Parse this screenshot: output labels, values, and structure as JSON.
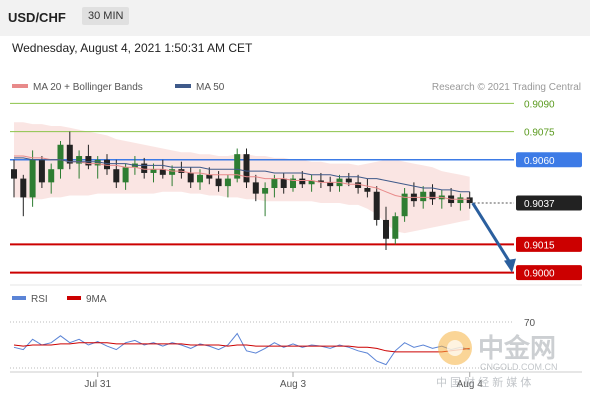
{
  "header": {
    "symbol": "USD/CHF",
    "timeframe": "30 MIN",
    "timestamp": "Wednesday, August 4, 2021 1:50:31 AM CET"
  },
  "credit": "Research © 2021 Trading Central",
  "watermark": {
    "brand": "中金网",
    "url": "CNGOLD.COM.CN",
    "slogan": "中 国 财 经 新 媒 体"
  },
  "colors": {
    "up": "#2e7d32",
    "down": "#222222",
    "ma20": "#e88a8a",
    "band": "#f7d4d1",
    "ma50": "#3f5a8a",
    "resistance": "#8bc34a",
    "pivot": "#3d7be6",
    "support": "#cc0000",
    "current": "#222222",
    "rsi": "#5b84d6",
    "rsi_ma": "#cc0000"
  },
  "chart_data": [
    {
      "type": "candlestick",
      "legend": [
        {
          "name": "MA 20 + Bollinger Bands",
          "color": "#e88a8a"
        },
        {
          "name": "MA 50",
          "color": "#3f5a8a"
        }
      ],
      "ylim": [
        0.8995,
        0.9095
      ],
      "x_ticks": [
        "Jul 31",
        "Aug 3",
        "Aug 4"
      ],
      "levels": [
        {
          "value": 0.909,
          "label": "0.9090",
          "kind": "resistance"
        },
        {
          "value": 0.9075,
          "label": "0.9075",
          "kind": "resistance"
        },
        {
          "value": 0.906,
          "label": "0.9060",
          "kind": "pivot"
        },
        {
          "value": 0.9037,
          "label": "0.9037",
          "kind": "current"
        },
        {
          "value": 0.9015,
          "label": "0.9015",
          "kind": "support"
        },
        {
          "value": 0.9,
          "label": "0.9000",
          "kind": "support"
        }
      ],
      "ohlc": [
        [
          0.9055,
          0.906,
          0.904,
          0.905
        ],
        [
          0.905,
          0.9052,
          0.903,
          0.904
        ],
        [
          0.904,
          0.9065,
          0.9035,
          0.906
        ],
        [
          0.906,
          0.9062,
          0.9045,
          0.9048
        ],
        [
          0.9048,
          0.9058,
          0.9042,
          0.9055
        ],
        [
          0.9055,
          0.907,
          0.905,
          0.9068
        ],
        [
          0.9068,
          0.9075,
          0.9055,
          0.9058
        ],
        [
          0.9058,
          0.9065,
          0.905,
          0.9062
        ],
        [
          0.9062,
          0.9068,
          0.9055,
          0.9057
        ],
        [
          0.9057,
          0.9062,
          0.905,
          0.906
        ],
        [
          0.906,
          0.9063,
          0.9052,
          0.9055
        ],
        [
          0.9055,
          0.906,
          0.9045,
          0.9048
        ],
        [
          0.9048,
          0.9058,
          0.9044,
          0.9056
        ],
        [
          0.9056,
          0.9062,
          0.9052,
          0.9058
        ],
        [
          0.9058,
          0.9061,
          0.905,
          0.9053
        ],
        [
          0.9053,
          0.9058,
          0.9048,
          0.9055
        ],
        [
          0.9055,
          0.906,
          0.905,
          0.9052
        ],
        [
          0.9052,
          0.9057,
          0.9046,
          0.9055
        ],
        [
          0.9055,
          0.9059,
          0.905,
          0.9053
        ],
        [
          0.9053,
          0.9056,
          0.9045,
          0.9048
        ],
        [
          0.9048,
          0.9055,
          0.9044,
          0.9052
        ],
        [
          0.9052,
          0.9056,
          0.9047,
          0.905
        ],
        [
          0.905,
          0.9054,
          0.9043,
          0.9046
        ],
        [
          0.9046,
          0.9052,
          0.904,
          0.905
        ],
        [
          0.905,
          0.9066,
          0.9048,
          0.9063
        ],
        [
          0.9063,
          0.9066,
          0.9045,
          0.9048
        ],
        [
          0.9048,
          0.9052,
          0.9038,
          0.9042
        ],
        [
          0.9042,
          0.9048,
          0.903,
          0.9045
        ],
        [
          0.9045,
          0.9052,
          0.904,
          0.905
        ],
        [
          0.905,
          0.9053,
          0.9042,
          0.9045
        ],
        [
          0.9045,
          0.9052,
          0.9043,
          0.905
        ],
        [
          0.905,
          0.9054,
          0.9045,
          0.9047
        ],
        [
          0.9047,
          0.9052,
          0.9043,
          0.9049
        ],
        [
          0.9049,
          0.9053,
          0.9045,
          0.9048
        ],
        [
          0.9048,
          0.9051,
          0.9043,
          0.9046
        ],
        [
          0.9046,
          0.9052,
          0.9043,
          0.905
        ],
        [
          0.905,
          0.9053,
          0.9046,
          0.9048
        ],
        [
          0.9048,
          0.9052,
          0.9042,
          0.9045
        ],
        [
          0.9045,
          0.905,
          0.904,
          0.9043
        ],
        [
          0.9043,
          0.9046,
          0.9025,
          0.9028
        ],
        [
          0.9028,
          0.9035,
          0.9012,
          0.9018
        ],
        [
          0.9018,
          0.9032,
          0.9015,
          0.903
        ],
        [
          0.903,
          0.9045,
          0.9027,
          0.9042
        ],
        [
          0.9042,
          0.9048,
          0.9035,
          0.9038
        ],
        [
          0.9038,
          0.9046,
          0.9034,
          0.9043
        ],
        [
          0.9043,
          0.9047,
          0.9036,
          0.9039
        ],
        [
          0.9039,
          0.9044,
          0.9034,
          0.9041
        ],
        [
          0.9041,
          0.9045,
          0.9035,
          0.9037
        ],
        [
          0.9037,
          0.9042,
          0.9033,
          0.904
        ],
        [
          0.904,
          0.9043,
          0.9034,
          0.9037
        ]
      ],
      "ma20": [
        0.9062,
        0.9062,
        0.9061,
        0.9061,
        0.906,
        0.906,
        0.9059,
        0.9059,
        0.9058,
        0.9058,
        0.9057,
        0.9057,
        0.9056,
        0.9056,
        0.9055,
        0.9055,
        0.9055,
        0.9054,
        0.9054,
        0.9053,
        0.9053,
        0.9052,
        0.9052,
        0.9052,
        0.9052,
        0.9051,
        0.9051,
        0.905,
        0.905,
        0.905,
        0.9049,
        0.9049,
        0.9049,
        0.9048,
        0.9048,
        0.9048,
        0.9047,
        0.9047,
        0.9046,
        0.9045,
        0.9043,
        0.9041,
        0.904,
        0.904,
        0.904,
        0.904,
        0.904,
        0.9039,
        0.9039,
        0.9039
      ],
      "band_upper": [
        0.908,
        0.908,
        0.9079,
        0.9079,
        0.9078,
        0.9078,
        0.9077,
        0.9076,
        0.9075,
        0.9074,
        0.9073,
        0.9071,
        0.907,
        0.9069,
        0.9068,
        0.9067,
        0.9066,
        0.9065,
        0.9064,
        0.9064,
        0.9063,
        0.9063,
        0.9062,
        0.9062,
        0.9063,
        0.9063,
        0.9062,
        0.9062,
        0.9061,
        0.9061,
        0.906,
        0.906,
        0.9059,
        0.9059,
        0.9058,
        0.9058,
        0.9058,
        0.9057,
        0.9058,
        0.9059,
        0.906,
        0.906,
        0.9059,
        0.9058,
        0.9057,
        0.9056,
        0.9054,
        0.9053,
        0.9052,
        0.9051
      ],
      "band_lower": [
        0.904,
        0.904,
        0.9039,
        0.9039,
        0.904,
        0.904,
        0.9041,
        0.9041,
        0.9041,
        0.9042,
        0.9042,
        0.9042,
        0.9042,
        0.9042,
        0.9042,
        0.9042,
        0.9043,
        0.9043,
        0.9043,
        0.9042,
        0.9042,
        0.9041,
        0.9041,
        0.904,
        0.904,
        0.9039,
        0.9039,
        0.9038,
        0.9038,
        0.9038,
        0.9038,
        0.9038,
        0.9038,
        0.9037,
        0.9037,
        0.9037,
        0.9036,
        0.9036,
        0.9034,
        0.9031,
        0.9026,
        0.9022,
        0.9021,
        0.9022,
        0.9023,
        0.9024,
        0.9025,
        0.9026,
        0.9027,
        0.9028
      ],
      "ma50": [
        0.9061,
        0.9061,
        0.906,
        0.906,
        0.906,
        0.906,
        0.9059,
        0.9059,
        0.9059,
        0.9059,
        0.9058,
        0.9058,
        0.9058,
        0.9057,
        0.9057,
        0.9057,
        0.9057,
        0.9056,
        0.9056,
        0.9056,
        0.9056,
        0.9055,
        0.9055,
        0.9055,
        0.9055,
        0.9054,
        0.9054,
        0.9054,
        0.9053,
        0.9053,
        0.9053,
        0.9053,
        0.9052,
        0.9052,
        0.9052,
        0.9051,
        0.9051,
        0.9051,
        0.905,
        0.905,
        0.9049,
        0.9048,
        0.9047,
        0.9046,
        0.9045,
        0.9045,
        0.9044,
        0.9044,
        0.9043,
        0.9043
      ],
      "forecast": {
        "from": 0.9037,
        "to": 0.9
      }
    },
    {
      "type": "line",
      "legend": [
        {
          "name": "RSI",
          "color": "#5b84d6"
        },
        {
          "name": "9MA",
          "color": "#cc0000"
        }
      ],
      "ylim": [
        30,
        70
      ],
      "y_ticks": [
        "70"
      ],
      "series": [
        {
          "name": "RSI",
          "values": [
            48,
            46,
            55,
            50,
            52,
            58,
            52,
            55,
            50,
            53,
            49,
            46,
            52,
            54,
            50,
            52,
            49,
            52,
            50,
            47,
            51,
            49,
            46,
            50,
            60,
            45,
            43,
            47,
            52,
            48,
            51,
            48,
            50,
            49,
            47,
            50,
            48,
            45,
            43,
            36,
            33,
            45,
            52,
            48,
            50,
            47,
            49,
            46,
            48,
            46
          ]
        },
        {
          "name": "9MA",
          "values": [
            50,
            49,
            50,
            50,
            50,
            51,
            51,
            52,
            52,
            52,
            52,
            51,
            51,
            51,
            51,
            51,
            51,
            51,
            51,
            50,
            50,
            50,
            50,
            49,
            50,
            50,
            49,
            49,
            49,
            49,
            49,
            49,
            49,
            49,
            49,
            49,
            49,
            48,
            48,
            47,
            45,
            44,
            44,
            44,
            44,
            44,
            44,
            45,
            46,
            47
          ]
        }
      ]
    }
  ]
}
